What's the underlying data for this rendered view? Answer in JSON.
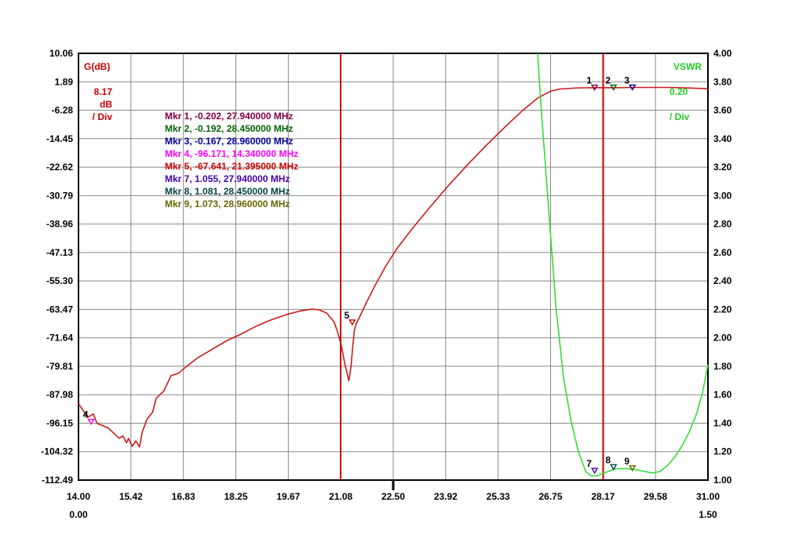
{
  "chart_data": {
    "type": "line",
    "x_axis": {
      "ticks": [
        "14.00",
        "15.42",
        "16.83",
        "18.25",
        "19.67",
        "21.08",
        "22.50",
        "23.92",
        "25.33",
        "26.75",
        "28.17",
        "29.58",
        "31.00"
      ],
      "range": [
        14.0,
        31.0
      ],
      "sub_left": "0.00",
      "sub_right": "1.50"
    },
    "y_left": {
      "title": "G(dB)",
      "scale_value": "8.17",
      "scale_unit": "dB",
      "scale_div": "/ Div",
      "ticks": [
        "10.06",
        "1.89",
        "-6.28",
        "-14.45",
        "-22.62",
        "-30.79",
        "-38.96",
        "-47.13",
        "-55.30",
        "-63.47",
        "-71.64",
        "-79.81",
        "-87.98",
        "-96.15",
        "-104.32",
        "-112.49"
      ],
      "range": [
        -112.49,
        10.06
      ],
      "color": "#cc0000"
    },
    "y_right": {
      "title": "VSWR",
      "scale_value": "0.20",
      "scale_div": "/ Div",
      "ticks": [
        "4.00",
        "3.80",
        "3.60",
        "3.40",
        "3.20",
        "3.00",
        "2.80",
        "2.60",
        "2.40",
        "2.20",
        "2.00",
        "1.80",
        "1.60",
        "1.40",
        "1.20",
        "1.00"
      ],
      "range": [
        1.0,
        4.0
      ],
      "color": "#22cc22"
    },
    "grid": true,
    "cursor_lines_mhz": [
      21.08,
      28.17
    ],
    "center_tick_mhz": 22.5,
    "series": [
      {
        "axis": "left",
        "color": "#cc1a1a",
        "points": [
          [
            14.0,
            -90.5
          ],
          [
            14.25,
            -94.5
          ],
          [
            14.4,
            -93.5
          ],
          [
            14.5,
            -96.2
          ],
          [
            14.8,
            -97.5
          ],
          [
            14.95,
            -99
          ],
          [
            15.1,
            -100.5
          ],
          [
            15.2,
            -99.8
          ],
          [
            15.3,
            -101.8
          ],
          [
            15.35,
            -100.5
          ],
          [
            15.45,
            -102.8
          ],
          [
            15.55,
            -101.2
          ],
          [
            15.65,
            -103.0
          ],
          [
            15.72,
            -98.8
          ],
          [
            15.85,
            -95.0
          ],
          [
            16.0,
            -93.0
          ],
          [
            16.1,
            -89.0
          ],
          [
            16.3,
            -87.0
          ],
          [
            16.5,
            -82.5
          ],
          [
            16.7,
            -81.8
          ],
          [
            16.9,
            -80.0
          ],
          [
            17.2,
            -77.5
          ],
          [
            17.6,
            -75.0
          ],
          [
            18.0,
            -72.5
          ],
          [
            18.4,
            -70.5
          ],
          [
            18.8,
            -68.3
          ],
          [
            19.2,
            -66.5
          ],
          [
            19.6,
            -65.0
          ],
          [
            20.0,
            -63.9
          ],
          [
            20.3,
            -63.4
          ],
          [
            20.5,
            -63.6
          ],
          [
            20.7,
            -64.5
          ],
          [
            20.9,
            -67.0
          ],
          [
            21.0,
            -70.0
          ],
          [
            21.1,
            -74.0
          ],
          [
            21.2,
            -79.5
          ],
          [
            21.27,
            -82.5
          ],
          [
            21.3,
            -84.0
          ],
          [
            21.36,
            -80.0
          ],
          [
            21.4,
            -75.0
          ],
          [
            21.45,
            -69.5
          ],
          [
            21.5,
            -67.6
          ],
          [
            21.6,
            -65.5
          ],
          [
            21.8,
            -61.0
          ],
          [
            22.0,
            -56.8
          ],
          [
            22.3,
            -51.0
          ],
          [
            22.6,
            -46.0
          ],
          [
            23.0,
            -40.5
          ],
          [
            23.5,
            -34.0
          ],
          [
            24.0,
            -27.8
          ],
          [
            24.5,
            -22.0
          ],
          [
            25.0,
            -16.5
          ],
          [
            25.5,
            -11.3
          ],
          [
            26.0,
            -6.3
          ],
          [
            26.4,
            -2.8
          ],
          [
            26.75,
            -0.8
          ],
          [
            27.0,
            -0.2
          ],
          [
            27.5,
            0.15
          ],
          [
            28.0,
            0.2
          ],
          [
            28.5,
            0.2
          ],
          [
            29.0,
            0.25
          ],
          [
            30.0,
            0.25
          ],
          [
            30.5,
            0.1
          ],
          [
            31.0,
            -0.1
          ]
        ]
      },
      {
        "axis": "right",
        "color": "#33dd33",
        "points": [
          [
            26.4,
            4.0
          ],
          [
            26.5,
            3.6
          ],
          [
            26.7,
            2.9
          ],
          [
            26.9,
            2.2
          ],
          [
            27.1,
            1.72
          ],
          [
            27.3,
            1.42
          ],
          [
            27.5,
            1.2
          ],
          [
            27.7,
            1.06
          ],
          [
            27.85,
            1.03
          ],
          [
            28.0,
            1.03
          ],
          [
            28.2,
            1.05
          ],
          [
            28.5,
            1.08
          ],
          [
            28.8,
            1.08
          ],
          [
            29.0,
            1.075
          ],
          [
            29.3,
            1.06
          ],
          [
            29.5,
            1.05
          ],
          [
            29.7,
            1.06
          ],
          [
            29.9,
            1.1
          ],
          [
            30.1,
            1.16
          ],
          [
            30.3,
            1.24
          ],
          [
            30.5,
            1.34
          ],
          [
            30.7,
            1.47
          ],
          [
            30.85,
            1.61
          ],
          [
            31.0,
            1.81
          ]
        ]
      }
    ],
    "markers": [
      {
        "n": "1",
        "axis": "left",
        "x": 27.94,
        "y": -0.202,
        "color": "#800040",
        "label_pos": "above"
      },
      {
        "n": "2",
        "axis": "left",
        "x": 28.45,
        "y": -0.192,
        "color": "#006600",
        "label_pos": "above"
      },
      {
        "n": "3",
        "axis": "left",
        "x": 28.96,
        "y": -0.167,
        "color": "#000099",
        "label_pos": "above"
      },
      {
        "n": "4",
        "axis": "left",
        "x": 14.34,
        "y": -96.171,
        "color": "#ff00ff",
        "label_pos": "above"
      },
      {
        "n": "5",
        "axis": "left",
        "x": 21.395,
        "y": -67.641,
        "color": "#cc0000",
        "label_pos": "above"
      },
      {
        "n": "7",
        "axis": "right",
        "x": 27.94,
        "y": 1.055,
        "color": "#4400aa",
        "label_pos": "above"
      },
      {
        "n": "8",
        "axis": "right",
        "x": 28.45,
        "y": 1.081,
        "color": "#004444",
        "label_pos": "above"
      },
      {
        "n": "9",
        "axis": "right",
        "x": 28.96,
        "y": 1.073,
        "color": "#666600",
        "label_pos": "above"
      }
    ],
    "marker_table": [
      {
        "text": "Mkr 1, -0.202, 27.940000 MHz",
        "color": "#800040"
      },
      {
        "text": "Mkr 2, -0.192, 28.450000 MHz",
        "color": "#006600"
      },
      {
        "text": "Mkr 3, -0.167, 28.960000 MHz",
        "color": "#000099"
      },
      {
        "text": "Mkr 4, -96.171, 14.340000 MHz",
        "color": "#ff00ff"
      },
      {
        "text": "Mkr 5, -67.641, 21.395000 MHz",
        "color": "#cc0000"
      },
      {
        "text": "Mkr 7, 1.055, 27.940000 MHz",
        "color": "#4400aa"
      },
      {
        "text": "Mkr 8, 1.081, 28.450000 MHz",
        "color": "#004444"
      },
      {
        "text": "Mkr 9, 1.073, 28.960000 MHz",
        "color": "#666600"
      }
    ]
  }
}
